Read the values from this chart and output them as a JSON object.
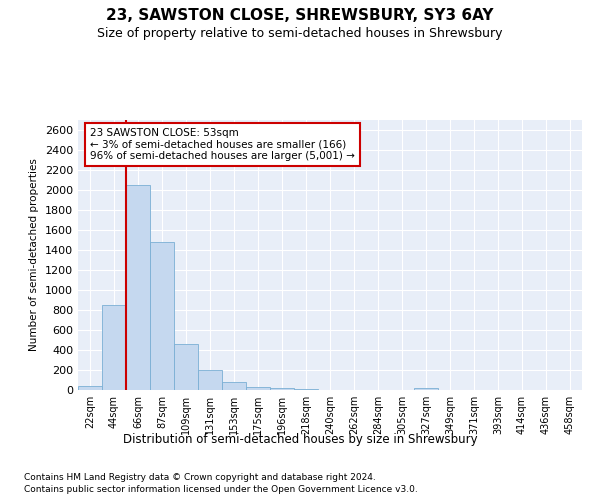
{
  "title": "23, SAWSTON CLOSE, SHREWSBURY, SY3 6AY",
  "subtitle": "Size of property relative to semi-detached houses in Shrewsbury",
  "xlabel": "Distribution of semi-detached houses by size in Shrewsbury",
  "ylabel": "Number of semi-detached properties",
  "categories": [
    "22sqm",
    "44sqm",
    "66sqm",
    "87sqm",
    "109sqm",
    "131sqm",
    "153sqm",
    "175sqm",
    "196sqm",
    "218sqm",
    "240sqm",
    "262sqm",
    "284sqm",
    "305sqm",
    "327sqm",
    "349sqm",
    "371sqm",
    "393sqm",
    "414sqm",
    "436sqm",
    "458sqm"
  ],
  "values": [
    40,
    850,
    2050,
    1480,
    460,
    200,
    85,
    35,
    20,
    10,
    5,
    5,
    0,
    0,
    20,
    0,
    0,
    0,
    0,
    0,
    0
  ],
  "ylim": [
    0,
    2700
  ],
  "yticks": [
    0,
    200,
    400,
    600,
    800,
    1000,
    1200,
    1400,
    1600,
    1800,
    2000,
    2200,
    2400,
    2600
  ],
  "bar_color": "#c5d8ef",
  "bar_edge_color": "#7aafd4",
  "red_line_color": "#cc0000",
  "annotation_text": "23 SAWSTON CLOSE: 53sqm\n← 3% of semi-detached houses are smaller (166)\n96% of semi-detached houses are larger (5,001) →",
  "annotation_box_color": "#ffffff",
  "annotation_box_edge": "#cc0000",
  "bg_color": "#e8eef8",
  "grid_color": "#ffffff",
  "footer_line1": "Contains HM Land Registry data © Crown copyright and database right 2024.",
  "footer_line2": "Contains public sector information licensed under the Open Government Licence v3.0."
}
